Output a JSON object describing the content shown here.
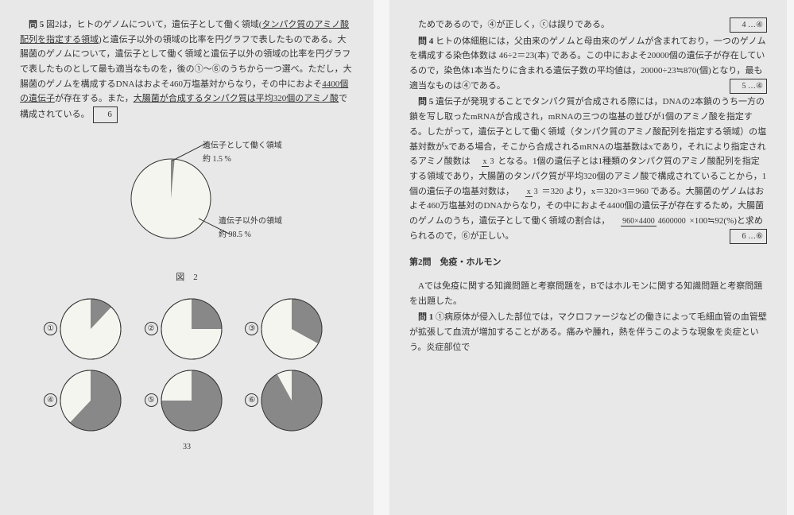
{
  "left": {
    "q5_label": "問 5",
    "q5_text1": "図2は，ヒトのゲノムについて，遺伝子として働く領域(",
    "q5_underline1": "タンパク質のアミノ酸配列を指定する領域",
    "q5_text2": ")と遺伝子以外の領域の比率を円グラフで表したものである。大腸菌のゲノムについて，遺伝子として働く領域と遺伝子以外の領域の比率を円グラフで表したものとして最も適当なものを，後の①〜⑥のうちから一つ選べ。ただし，大腸菌のゲノムを構成するDNAはおよそ460万塩基対からなり，その中におよそ",
    "q5_underline2": "4400個の遺伝子",
    "q5_text3": "が存在する。また，",
    "q5_underline3": "大腸菌が合成するタンパク質は平均320個のアミノ酸",
    "q5_text4": "で構成されている。",
    "q5_box": "6",
    "pie_main": {
      "label_top_line1": "遺伝子として働く領域",
      "label_top_line2": "約 1.5 %",
      "label_bot_line1": "遺伝子以外の領域",
      "label_bot_line2": "約 98.5 %",
      "radius": 50,
      "gene_pct": 1.5,
      "fill_bg": "#f5f5f0",
      "fill_slice": "#888888",
      "stroke": "#333333"
    },
    "fig_caption": "図　2",
    "choices": [
      {
        "n": "①",
        "dark_pct": 12,
        "rot": -90
      },
      {
        "n": "②",
        "dark_pct": 25,
        "rot": -90
      },
      {
        "n": "③",
        "dark_pct": 33,
        "rot": -90
      },
      {
        "n": "④",
        "dark_pct": 62,
        "rot": -90
      },
      {
        "n": "⑤",
        "dark_pct": 75,
        "rot": -90
      },
      {
        "n": "⑥",
        "dark_pct": 92,
        "rot": -90
      }
    ],
    "choice_r": 38,
    "choice_fill_light": "#f5f5f0",
    "choice_fill_dark": "#888888",
    "choice_stroke": "#333333",
    "page_footer": "33"
  },
  "right": {
    "top_frag": "ためであるので，④が正しく，ⓒは誤りである。",
    "top_ans": "4 …④",
    "q4_label": "問 4",
    "q4_text": "ヒトの体細胞には，父由来のゲノムと母由来のゲノムが含まれており，一つのゲノムを構成する染色体数は 46÷2＝23(本) である。この中におよそ20000個の遺伝子が存在しているので，染色体1本当たりに含まれる遺伝子数の平均値は，20000÷23≒870(個)となり，最も適当なものは④である。",
    "q4_ans": "5 …④",
    "q5_label": "問 5",
    "q5_text1": "遺伝子が発現することでタンパク質が合成される際には，DNAの2本鎖のうち一方の鎖を写し取ったmRNAが合成され，mRNAの三つの塩基の並びが1個のアミノ酸を指定する。したがって，遺伝子として働く領域（タンパク質のアミノ酸配列を指定する領域）の塩基対数がxである場合，そこから合成されるmRNAの塩基数はxであり，それにより指定されるアミノ酸数は ",
    "q5_frac1_top": "x",
    "q5_frac1_bot": "3",
    "q5_text2": " となる。1個の遺伝子とは1種類のタンパク質のアミノ酸配列を指定する領域であり，大腸菌のタンパク質が平均320個のアミノ酸で構成されていることから，1個の遺伝子の塩基対数は，",
    "q5_frac2_top": "x",
    "q5_frac2_bot": "3",
    "q5_text3": " ＝320 より，x＝320×3＝960 である。大腸菌のゲノムはおよそ460万塩基対のDNAからなり，その中におよそ4400個の遺伝子が存在するため，大腸菌のゲノムのうち，遺伝子として働く領域の割合は，",
    "q5_frac3_top": "960×4400",
    "q5_frac3_bot": "4600000",
    "q5_text4": " ×100≒92(%)と求められるので，⑥が正しい。",
    "q5_ans": "6 …⑥",
    "sec2_head": "第2問　免疫・ホルモン",
    "sec2_intro": "Aでは免疫に関する知識問題と考察問題を，Bではホルモンに関する知識問題と考察問題を出題した。",
    "sec2_q1_label": "問 1",
    "sec2_q1_text": "①病原体が侵入した部位では，マクロファージなどの働きによって毛細血管の血管壁が拡張して血流が増加することがある。痛みや腫れ，熱を伴うこのような現象を炎症という。炎症部位で"
  }
}
